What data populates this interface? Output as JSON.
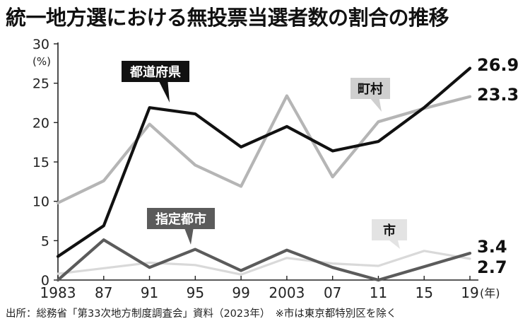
{
  "title": "統一地方選における無投票当選者数の割合の推移",
  "source": "出所：総務省「第33次地方制度調査会」資料（2023年）　※市は東京都特別区を除く",
  "chart_data": {
    "type": "line",
    "x": [
      "1983",
      "87",
      "91",
      "95",
      "99",
      "2003",
      "07",
      "11",
      "15",
      "19"
    ],
    "xunit": "(年)",
    "ylabel": "(%)",
    "ylim": [
      0,
      30
    ],
    "yticks": [
      0,
      5,
      10,
      15,
      20,
      25,
      30
    ],
    "grid": false,
    "series": [
      {
        "name": "都道府県",
        "color": "#111111",
        "values": [
          3.0,
          6.9,
          21.9,
          21.1,
          16.9,
          19.5,
          16.4,
          17.6,
          21.9,
          26.9
        ],
        "end_label": "26.9",
        "width": 4.2
      },
      {
        "name": "町村",
        "color": "#b5b5b5",
        "values": [
          9.8,
          12.6,
          19.8,
          14.6,
          11.9,
          23.4,
          13.1,
          20.1,
          21.8,
          23.3
        ],
        "end_label": "23.3",
        "width": 4.2
      },
      {
        "name": "指定都市",
        "color": "#5b5b5b",
        "values": [
          0,
          5.1,
          1.6,
          3.9,
          1.2,
          3.8,
          1.6,
          0,
          1.7,
          3.4
        ],
        "end_label": "3.4",
        "width": 4.2
      },
      {
        "name": "市",
        "color": "#d9d9d9",
        "values": [
          0.8,
          1.5,
          2.2,
          1.9,
          0.7,
          2.8,
          2.1,
          1.8,
          3.7,
          2.7
        ],
        "end_label": "2.7",
        "width": 3.2
      }
    ]
  }
}
